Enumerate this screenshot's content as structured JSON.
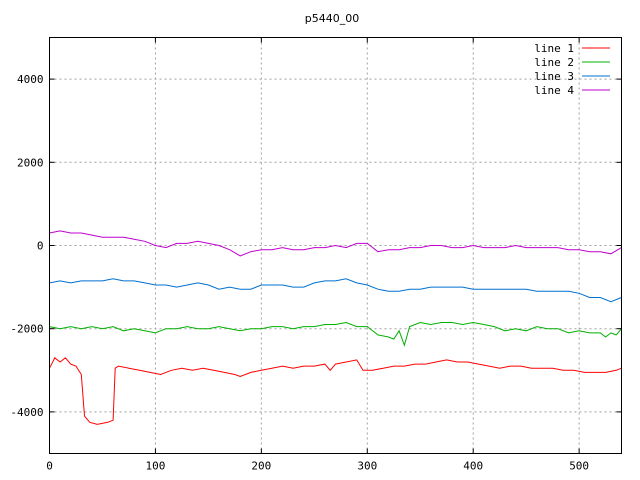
{
  "chart_data": {
    "type": "line",
    "title": "p5440_00",
    "xlabel": "",
    "ylabel": "",
    "xlim": [
      0,
      540
    ],
    "ylim": [
      -5000,
      5000
    ],
    "xticks": [
      0,
      100,
      200,
      300,
      400,
      500
    ],
    "yticks": [
      -4000,
      -2000,
      0,
      2000,
      4000
    ],
    "xtick_labels": [
      "0",
      "100",
      "200",
      "300",
      "400",
      "500"
    ],
    "ytick_labels": [
      "-4000",
      "-2000",
      "0",
      "2000",
      "4000"
    ],
    "grid": true,
    "legend_position": "top-right",
    "series": [
      {
        "name": "line 1",
        "color": "#ff0000",
        "points": [
          [
            0,
            -2950
          ],
          [
            5,
            -2700
          ],
          [
            10,
            -2800
          ],
          [
            15,
            -2700
          ],
          [
            20,
            -2850
          ],
          [
            25,
            -2900
          ],
          [
            30,
            -3100
          ],
          [
            33,
            -4100
          ],
          [
            38,
            -4250
          ],
          [
            45,
            -4300
          ],
          [
            55,
            -4250
          ],
          [
            60,
            -4200
          ],
          [
            62,
            -2950
          ],
          [
            65,
            -2900
          ],
          [
            75,
            -2950
          ],
          [
            85,
            -3000
          ],
          [
            95,
            -3050
          ],
          [
            105,
            -3100
          ],
          [
            115,
            -3000
          ],
          [
            125,
            -2950
          ],
          [
            135,
            -3000
          ],
          [
            145,
            -2950
          ],
          [
            155,
            -3000
          ],
          [
            165,
            -3050
          ],
          [
            175,
            -3100
          ],
          [
            180,
            -3150
          ],
          [
            190,
            -3050
          ],
          [
            200,
            -3000
          ],
          [
            210,
            -2950
          ],
          [
            220,
            -2900
          ],
          [
            230,
            -2950
          ],
          [
            240,
            -2900
          ],
          [
            250,
            -2900
          ],
          [
            260,
            -2850
          ],
          [
            265,
            -3000
          ],
          [
            270,
            -2850
          ],
          [
            280,
            -2800
          ],
          [
            290,
            -2750
          ],
          [
            296,
            -3000
          ],
          [
            305,
            -3000
          ],
          [
            315,
            -2950
          ],
          [
            325,
            -2900
          ],
          [
            335,
            -2900
          ],
          [
            345,
            -2850
          ],
          [
            355,
            -2850
          ],
          [
            365,
            -2800
          ],
          [
            375,
            -2750
          ],
          [
            385,
            -2800
          ],
          [
            395,
            -2800
          ],
          [
            405,
            -2850
          ],
          [
            415,
            -2900
          ],
          [
            425,
            -2950
          ],
          [
            435,
            -2900
          ],
          [
            445,
            -2900
          ],
          [
            455,
            -2950
          ],
          [
            465,
            -2950
          ],
          [
            475,
            -2950
          ],
          [
            485,
            -3000
          ],
          [
            495,
            -3000
          ],
          [
            505,
            -3050
          ],
          [
            515,
            -3050
          ],
          [
            525,
            -3050
          ],
          [
            535,
            -3000
          ],
          [
            540,
            -2950
          ]
        ]
      },
      {
        "name": "line 2",
        "color": "#00b000",
        "points": [
          [
            0,
            -1950
          ],
          [
            10,
            -2000
          ],
          [
            20,
            -1950
          ],
          [
            30,
            -2000
          ],
          [
            40,
            -1950
          ],
          [
            50,
            -2000
          ],
          [
            60,
            -1950
          ],
          [
            70,
            -2050
          ],
          [
            80,
            -2000
          ],
          [
            90,
            -2050
          ],
          [
            100,
            -2100
          ],
          [
            110,
            -2000
          ],
          [
            120,
            -2000
          ],
          [
            130,
            -1950
          ],
          [
            140,
            -2000
          ],
          [
            150,
            -2000
          ],
          [
            160,
            -1950
          ],
          [
            170,
            -2000
          ],
          [
            180,
            -2050
          ],
          [
            190,
            -2000
          ],
          [
            200,
            -2000
          ],
          [
            210,
            -1950
          ],
          [
            220,
            -1950
          ],
          [
            230,
            -2000
          ],
          [
            240,
            -1950
          ],
          [
            250,
            -1950
          ],
          [
            260,
            -1900
          ],
          [
            270,
            -1900
          ],
          [
            280,
            -1850
          ],
          [
            290,
            -1950
          ],
          [
            300,
            -1950
          ],
          [
            310,
            -2150
          ],
          [
            320,
            -2200
          ],
          [
            325,
            -2250
          ],
          [
            330,
            -2050
          ],
          [
            335,
            -2400
          ],
          [
            340,
            -1950
          ],
          [
            350,
            -1850
          ],
          [
            360,
            -1900
          ],
          [
            370,
            -1850
          ],
          [
            380,
            -1850
          ],
          [
            390,
            -1900
          ],
          [
            400,
            -1850
          ],
          [
            410,
            -1900
          ],
          [
            420,
            -1950
          ],
          [
            430,
            -2050
          ],
          [
            440,
            -2000
          ],
          [
            450,
            -2050
          ],
          [
            460,
            -1950
          ],
          [
            470,
            -2000
          ],
          [
            480,
            -2000
          ],
          [
            490,
            -2100
          ],
          [
            500,
            -2050
          ],
          [
            510,
            -2100
          ],
          [
            520,
            -2100
          ],
          [
            525,
            -2200
          ],
          [
            530,
            -2100
          ],
          [
            535,
            -2150
          ],
          [
            540,
            -2000
          ]
        ]
      },
      {
        "name": "line 3",
        "color": "#0070d0",
        "points": [
          [
            0,
            -900
          ],
          [
            10,
            -850
          ],
          [
            20,
            -900
          ],
          [
            30,
            -850
          ],
          [
            40,
            -850
          ],
          [
            50,
            -850
          ],
          [
            60,
            -800
          ],
          [
            70,
            -850
          ],
          [
            80,
            -850
          ],
          [
            90,
            -900
          ],
          [
            100,
            -950
          ],
          [
            110,
            -950
          ],
          [
            120,
            -1000
          ],
          [
            130,
            -950
          ],
          [
            140,
            -900
          ],
          [
            150,
            -950
          ],
          [
            160,
            -1050
          ],
          [
            170,
            -1000
          ],
          [
            180,
            -1050
          ],
          [
            190,
            -1050
          ],
          [
            200,
            -950
          ],
          [
            210,
            -950
          ],
          [
            220,
            -950
          ],
          [
            230,
            -1000
          ],
          [
            240,
            -1000
          ],
          [
            250,
            -900
          ],
          [
            260,
            -850
          ],
          [
            270,
            -850
          ],
          [
            280,
            -800
          ],
          [
            290,
            -900
          ],
          [
            300,
            -950
          ],
          [
            310,
            -1050
          ],
          [
            320,
            -1100
          ],
          [
            330,
            -1100
          ],
          [
            340,
            -1050
          ],
          [
            350,
            -1050
          ],
          [
            360,
            -1000
          ],
          [
            370,
            -1000
          ],
          [
            380,
            -1000
          ],
          [
            390,
            -1000
          ],
          [
            400,
            -1050
          ],
          [
            410,
            -1050
          ],
          [
            420,
            -1050
          ],
          [
            430,
            -1050
          ],
          [
            440,
            -1050
          ],
          [
            450,
            -1050
          ],
          [
            460,
            -1100
          ],
          [
            470,
            -1100
          ],
          [
            480,
            -1100
          ],
          [
            490,
            -1100
          ],
          [
            500,
            -1150
          ],
          [
            510,
            -1250
          ],
          [
            520,
            -1250
          ],
          [
            530,
            -1350
          ],
          [
            540,
            -1250
          ]
        ]
      },
      {
        "name": "line 4",
        "color": "#c000d0",
        "points": [
          [
            0,
            300
          ],
          [
            10,
            350
          ],
          [
            20,
            300
          ],
          [
            30,
            300
          ],
          [
            40,
            250
          ],
          [
            50,
            200
          ],
          [
            60,
            200
          ],
          [
            70,
            200
          ],
          [
            80,
            150
          ],
          [
            90,
            100
          ],
          [
            100,
            0
          ],
          [
            110,
            -50
          ],
          [
            120,
            50
          ],
          [
            130,
            50
          ],
          [
            140,
            100
          ],
          [
            150,
            50
          ],
          [
            160,
            0
          ],
          [
            170,
            -100
          ],
          [
            180,
            -250
          ],
          [
            190,
            -150
          ],
          [
            200,
            -100
          ],
          [
            210,
            -100
          ],
          [
            220,
            -50
          ],
          [
            230,
            -100
          ],
          [
            240,
            -100
          ],
          [
            250,
            -50
          ],
          [
            260,
            -50
          ],
          [
            270,
            0
          ],
          [
            280,
            -50
          ],
          [
            290,
            50
          ],
          [
            300,
            50
          ],
          [
            310,
            -150
          ],
          [
            320,
            -100
          ],
          [
            330,
            -100
          ],
          [
            340,
            -50
          ],
          [
            350,
            -50
          ],
          [
            360,
            0
          ],
          [
            370,
            0
          ],
          [
            380,
            -50
          ],
          [
            390,
            -50
          ],
          [
            400,
            0
          ],
          [
            410,
            -50
          ],
          [
            420,
            -50
          ],
          [
            430,
            -50
          ],
          [
            440,
            0
          ],
          [
            450,
            -50
          ],
          [
            460,
            -50
          ],
          [
            470,
            -50
          ],
          [
            480,
            -50
          ],
          [
            490,
            -100
          ],
          [
            500,
            -100
          ],
          [
            510,
            -150
          ],
          [
            520,
            -150
          ],
          [
            530,
            -200
          ],
          [
            540,
            -50
          ]
        ]
      }
    ]
  }
}
